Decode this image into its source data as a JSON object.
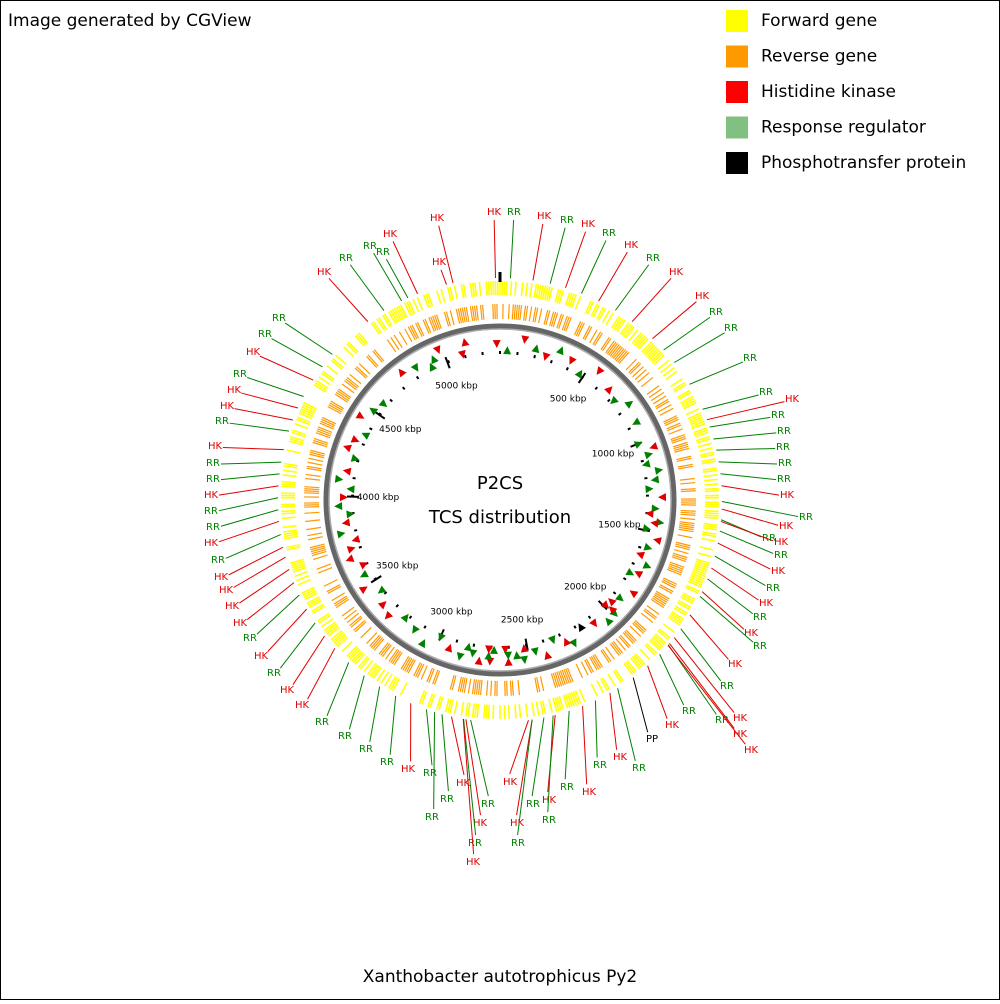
{
  "header": {
    "title": "Image generated by CGView"
  },
  "legend": [
    {
      "label": "Forward gene",
      "color": "#ffff00"
    },
    {
      "label": "Reverse gene",
      "color": "#ff9900"
    },
    {
      "label": "Histidine kinase",
      "color": "#ff0000"
    },
    {
      "label": "Response regulator",
      "color": "#80c080"
    },
    {
      "label": "Phosphotransfer protein",
      "color": "#000000"
    }
  ],
  "center": {
    "title": "P2CS",
    "subtitle": "TCS distribution"
  },
  "footer": {
    "title": "Xanthobacter autotrophicus Py2"
  },
  "scale": {
    "range": [
      0,
      5308
    ],
    "ticks": [
      {
        "value": 500,
        "label": "500 kbp"
      },
      {
        "value": 1000,
        "label": "1000 kbp"
      },
      {
        "value": 1500,
        "label": "1500 kbp"
      },
      {
        "value": 2000,
        "label": "2000 kbp"
      },
      {
        "value": 2500,
        "label": "2500 kbp"
      },
      {
        "value": 3000,
        "label": "3000 kbp"
      },
      {
        "value": 3500,
        "label": "3500 kbp"
      },
      {
        "value": 4000,
        "label": "4000 kbp"
      },
      {
        "value": 4500,
        "label": "4500 kbp"
      },
      {
        "value": 5000,
        "label": "5000 kbp"
      }
    ]
  },
  "features": [
    {
      "text": "HK",
      "color": "#e00000"
    },
    {
      "text": "HK",
      "color": "#e00000"
    },
    {
      "text": "RR",
      "color": "#008000"
    },
    {
      "text": "HK",
      "color": "#e00000"
    },
    {
      "text": "RR",
      "color": "#008000"
    },
    {
      "text": "HK",
      "color": "#e00000"
    },
    {
      "text": "RR",
      "color": "#008000"
    },
    {
      "text": "HK",
      "color": "#e00000"
    },
    {
      "text": "RR",
      "color": "#008000"
    },
    {
      "text": "HK",
      "color": "#e00000"
    },
    {
      "text": "HK",
      "color": "#e00000"
    },
    {
      "text": "RR",
      "color": "#008000"
    },
    {
      "text": "RR",
      "color": "#008000"
    },
    {
      "text": "RR",
      "color": "#008000"
    },
    {
      "text": "RR",
      "color": "#008000"
    },
    {
      "text": "HK",
      "color": "#e00000"
    },
    {
      "text": "RR",
      "color": "#008000"
    },
    {
      "text": "RR",
      "color": "#008000"
    },
    {
      "text": "RR",
      "color": "#008000"
    },
    {
      "text": "RR",
      "color": "#008000"
    },
    {
      "text": "RR",
      "color": "#008000"
    },
    {
      "text": "HK",
      "color": "#e00000"
    },
    {
      "text": "RR",
      "color": "#008000"
    },
    {
      "text": "HK",
      "color": "#e00000"
    },
    {
      "text": "RR",
      "color": "#008000"
    },
    {
      "text": "HK",
      "color": "#e00000"
    },
    {
      "text": "RR",
      "color": "#008000"
    },
    {
      "text": "HK",
      "color": "#e00000"
    },
    {
      "text": "RR",
      "color": "#008000"
    },
    {
      "text": "HK",
      "color": "#e00000"
    },
    {
      "text": "RR",
      "color": "#008000"
    },
    {
      "text": "HK",
      "color": "#e00000"
    },
    {
      "text": "RR",
      "color": "#008000"
    },
    {
      "text": "HK",
      "color": "#e00000"
    },
    {
      "text": "RR",
      "color": "#008000"
    },
    {
      "text": "HK",
      "color": "#e00000"
    },
    {
      "text": "RR",
      "color": "#008000"
    },
    {
      "text": "HK",
      "color": "#e00000"
    },
    {
      "text": "HK",
      "color": "#e00000"
    },
    {
      "text": "RR",
      "color": "#008000"
    },
    {
      "text": "HK",
      "color": "#e00000"
    },
    {
      "text": "PP",
      "color": "#000000"
    },
    {
      "text": "RR",
      "color": "#008000"
    },
    {
      "text": "HK",
      "color": "#e00000"
    },
    {
      "text": "RR",
      "color": "#008000"
    },
    {
      "text": "HK",
      "color": "#e00000"
    },
    {
      "text": "RR",
      "color": "#008000"
    },
    {
      "text": "HK",
      "color": "#e00000"
    },
    {
      "text": "RR",
      "color": "#008000"
    },
    {
      "text": "RR",
      "color": "#008000"
    },
    {
      "text": "HK",
      "color": "#e00000"
    },
    {
      "text": "HK",
      "color": "#e00000"
    },
    {
      "text": "RR",
      "color": "#008000"
    },
    {
      "text": "RR",
      "color": "#008000"
    },
    {
      "text": "HK",
      "color": "#e00000"
    },
    {
      "text": "RR",
      "color": "#008000"
    },
    {
      "text": "HK",
      "color": "#e00000"
    },
    {
      "text": "HK",
      "color": "#e00000"
    },
    {
      "text": "RR",
      "color": "#008000"
    },
    {
      "text": "RR",
      "color": "#008000"
    },
    {
      "text": "RR",
      "color": "#008000"
    },
    {
      "text": "HK",
      "color": "#e00000"
    },
    {
      "text": "RR",
      "color": "#008000"
    },
    {
      "text": "RR",
      "color": "#008000"
    },
    {
      "text": "RR",
      "color": "#008000"
    },
    {
      "text": "RR",
      "color": "#008000"
    },
    {
      "text": "HK",
      "color": "#e00000"
    },
    {
      "text": "HK",
      "color": "#e00000"
    },
    {
      "text": "RR",
      "color": "#008000"
    },
    {
      "text": "HK",
      "color": "#e00000"
    },
    {
      "text": "RR",
      "color": "#008000"
    },
    {
      "text": "HK",
      "color": "#e00000"
    },
    {
      "text": "HK",
      "color": "#e00000"
    },
    {
      "text": "HK",
      "color": "#e00000"
    },
    {
      "text": "HK",
      "color": "#e00000"
    },
    {
      "text": "RR",
      "color": "#008000"
    },
    {
      "text": "HK",
      "color": "#e00000"
    },
    {
      "text": "RR",
      "color": "#008000"
    },
    {
      "text": "RR",
      "color": "#008000"
    },
    {
      "text": "HK",
      "color": "#e00000"
    },
    {
      "text": "RR",
      "color": "#008000"
    },
    {
      "text": "RR",
      "color": "#008000"
    },
    {
      "text": "HK",
      "color": "#e00000"
    },
    {
      "text": "RR",
      "color": "#008000"
    },
    {
      "text": "HK",
      "color": "#e00000"
    },
    {
      "text": "HK",
      "color": "#e00000"
    },
    {
      "text": "RR",
      "color": "#008000"
    },
    {
      "text": "HK",
      "color": "#e00000"
    },
    {
      "text": "RR",
      "color": "#008000"
    },
    {
      "text": "RR",
      "color": "#008000"
    },
    {
      "text": "HK",
      "color": "#e00000"
    },
    {
      "text": "RR",
      "color": "#008000"
    },
    {
      "text": "RR",
      "color": "#008000"
    },
    {
      "text": "HK",
      "color": "#e00000"
    },
    {
      "text": "RR",
      "color": "#008000"
    },
    {
      "text": "HK",
      "color": "#e00000"
    }
  ]
}
